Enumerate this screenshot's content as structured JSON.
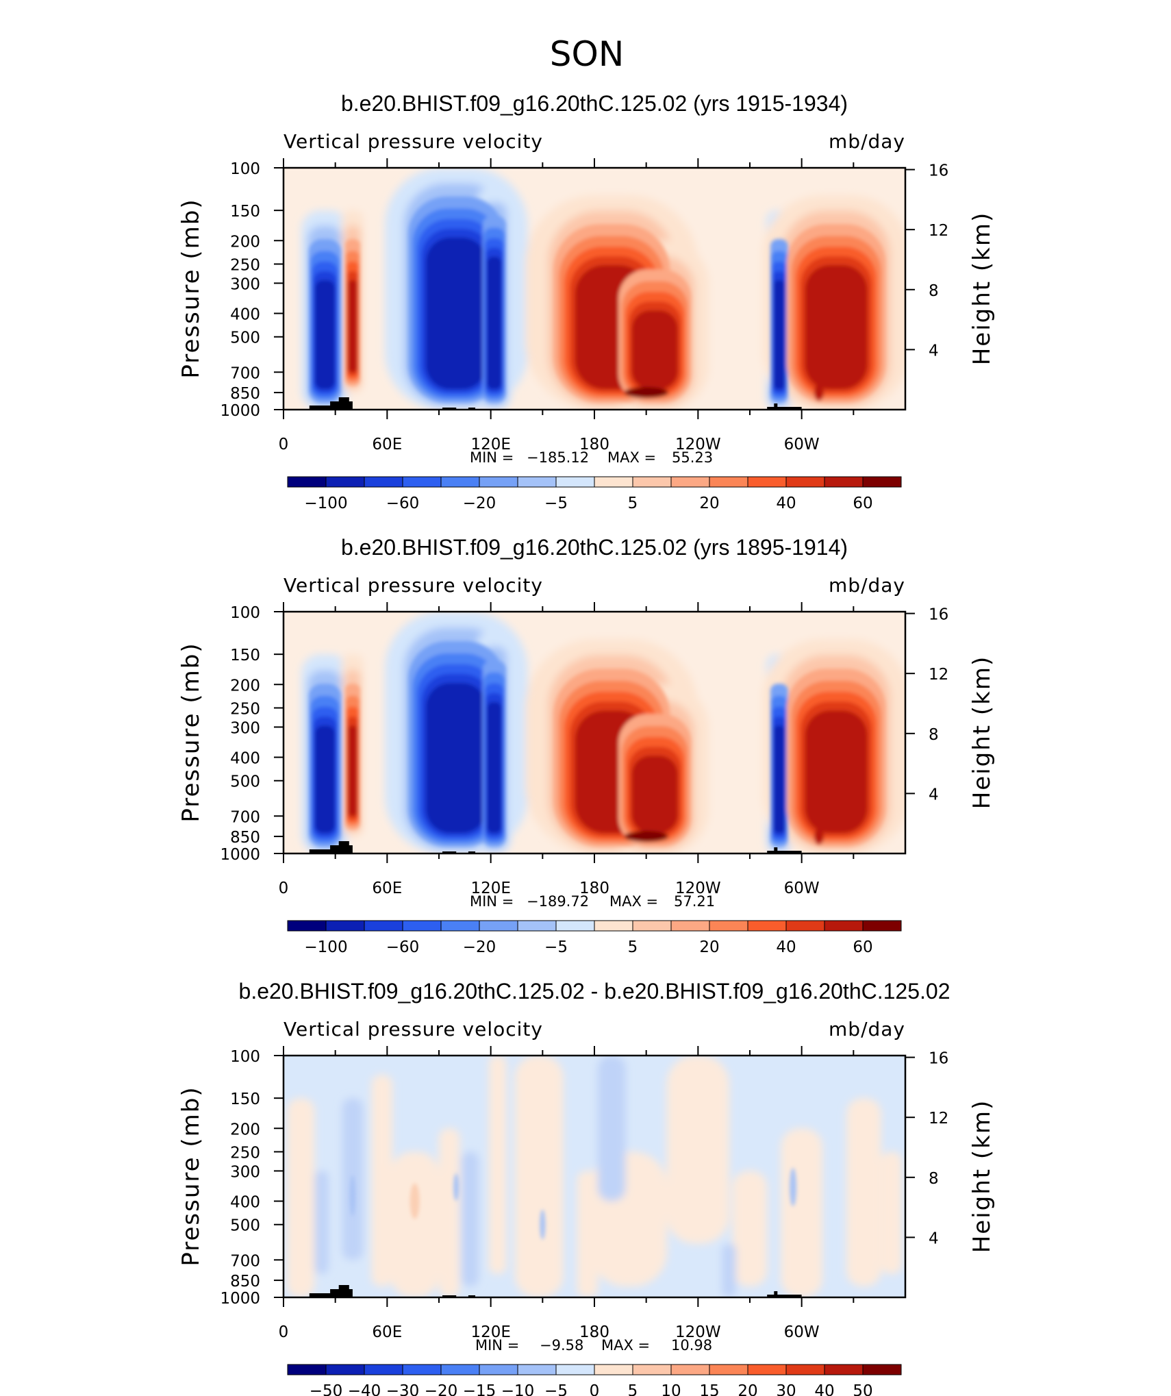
{
  "season_title": "SON",
  "colors": {
    "neg": [
      "#00007d",
      "#0c20b4",
      "#1a40dc",
      "#2d5ff0",
      "#4a80f5",
      "#76a1f6",
      "#a4c2f8",
      "#d4e6fc"
    ],
    "pos": [
      "#fde4d0",
      "#fcc7ab",
      "#fca884",
      "#fb8556",
      "#f95d2c",
      "#e03a17",
      "#b7190c",
      "#7d0000"
    ],
    "topo": "#000000"
  },
  "chart_data": [
    {
      "type": "heatmap",
      "title": "b.e20.BHIST.f09_g16.20thC.125.02 (yrs 1915-1934)",
      "left_label": "Vertical pressure velocity",
      "right_label": "mb/day",
      "ylabel": "Pressure (mb)",
      "ylabel_right": "Height (km)",
      "xticks": [
        "0",
        "60E",
        "120E",
        "180",
        "120W",
        "60W"
      ],
      "yticks": [
        "100",
        "150",
        "200",
        "250",
        "300",
        "400",
        "500",
        "700",
        "850",
        "1000"
      ],
      "yticks_right": [
        "16",
        "12",
        "8",
        "4"
      ],
      "stats": {
        "min_label": "MIN =",
        "min": "−185.12",
        "max_label": "MAX =",
        "max": "55.23"
      },
      "colorbar_labels": [
        "−100",
        "−60",
        "−20",
        "−5",
        "5",
        "20",
        "40",
        "60"
      ],
      "mode": "full",
      "amp": 1.0
    },
    {
      "type": "heatmap",
      "title": "b.e20.BHIST.f09_g16.20thC.125.02 (yrs 1895-1914)",
      "left_label": "Vertical pressure velocity",
      "right_label": "mb/day",
      "ylabel": "Pressure (mb)",
      "ylabel_right": "Height (km)",
      "xticks": [
        "0",
        "60E",
        "120E",
        "180",
        "120W",
        "60W"
      ],
      "yticks": [
        "100",
        "150",
        "200",
        "250",
        "300",
        "400",
        "500",
        "700",
        "850",
        "1000"
      ],
      "yticks_right": [
        "16",
        "12",
        "8",
        "4"
      ],
      "stats": {
        "min_label": "MIN =",
        "min": "−189.72",
        "max_label": "MAX =",
        "max": "57.21"
      },
      "colorbar_labels": [
        "−100",
        "−60",
        "−20",
        "−5",
        "5",
        "20",
        "40",
        "60"
      ],
      "mode": "full",
      "amp": 1.03
    },
    {
      "type": "heatmap",
      "title": "b.e20.BHIST.f09_g16.20thC.125.02 - b.e20.BHIST.f09_g16.20thC.125.02",
      "left_label": "Vertical pressure velocity",
      "right_label": "mb/day",
      "ylabel": "Pressure (mb)",
      "ylabel_right": "Height (km)",
      "xticks": [
        "0",
        "60E",
        "120E",
        "180",
        "120W",
        "60W"
      ],
      "yticks": [
        "100",
        "150",
        "200",
        "250",
        "300",
        "400",
        "500",
        "700",
        "850",
        "1000"
      ],
      "yticks_right": [
        "16",
        "12",
        "8",
        "4"
      ],
      "stats": {
        "min_label": "MIN =",
        "min": "−9.58",
        "max_label": "MAX =",
        "max": "10.98"
      },
      "colorbar_labels": [
        "−50",
        "−40",
        "−30",
        "−20",
        "−15",
        "−10",
        "−5",
        "0",
        "5",
        "10",
        "15",
        "20",
        "30",
        "40",
        "50"
      ],
      "mode": "diff",
      "amp": 1.0
    }
  ]
}
